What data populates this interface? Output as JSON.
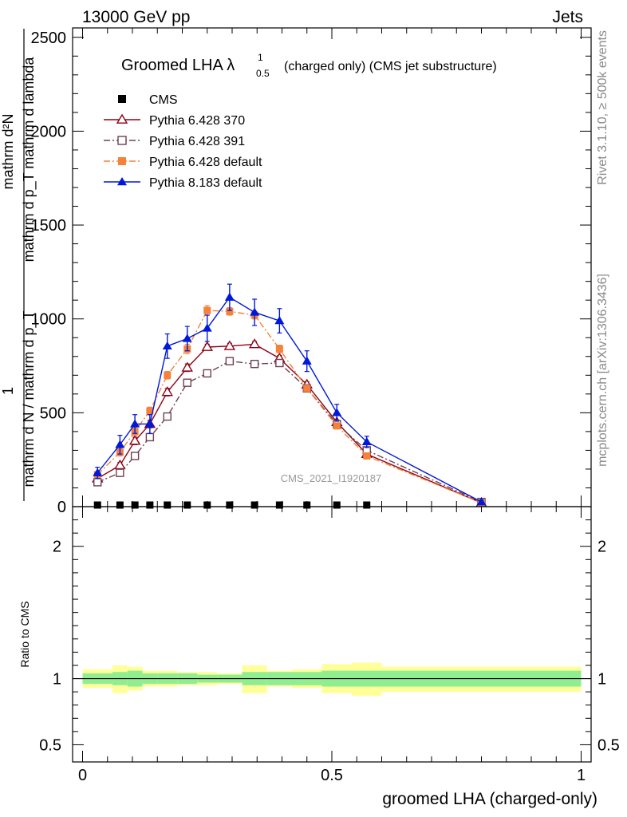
{
  "header": {
    "left": "13000 GeV pp",
    "right": "Jets"
  },
  "side_labels": {
    "rivet": "Rivet 3.1.10, ≥ 500k events",
    "mcplots": "mcplots.cern.ch [arXiv:1306.3436]"
  },
  "watermark": "CMS_2021_I1920187",
  "colors": {
    "pythia6_370": "#8b0016",
    "pythia6_391": "#704050",
    "pythia6_default": "#f5813a",
    "pythia8_default": "#0018d8",
    "band_inner": "#90ee90",
    "band_outer": "#ffff99"
  },
  "chart_data": [
    {
      "type": "line",
      "title_main": "Groomed LHA λ",
      "title_sup": "1",
      "title_sub": "0.5",
      "title_tail": "(charged only) (CMS jet substructure)",
      "ylabel_num": "1",
      "ylabel_den": "mathrm d N / mathrm d p_T",
      "ylabel_num2": "mathrm d²N",
      "ylabel_den2": "mathrm d p_T mathrm d lambda",
      "ylim": [
        0,
        2550
      ],
      "xlim": [
        -0.02,
        1.02
      ],
      "yticks": [
        0,
        500,
        1000,
        1500,
        2000,
        2500
      ],
      "ytick_labels": [
        "0",
        "500",
        "1000",
        "1500",
        "2000",
        "2500"
      ],
      "legend_position": "top-left",
      "series": [
        {
          "name": "CMS",
          "key": "cms",
          "color": "#000000",
          "marker": "square-filled",
          "line": "none",
          "x": [
            0.03,
            0.075,
            0.105,
            0.135,
            0.17,
            0.21,
            0.25,
            0.295,
            0.345,
            0.395,
            0.45,
            0.51,
            0.57
          ],
          "y": [
            0,
            0,
            0,
            0,
            0,
            0,
            0,
            0,
            0,
            0,
            0,
            0,
            0
          ]
        },
        {
          "name": "Pythia 6.428 370",
          "key": "pythia6_370",
          "color": "#8b0016",
          "marker": "triangle-open",
          "line": "solid",
          "x": [
            0.03,
            0.075,
            0.105,
            0.135,
            0.17,
            0.21,
            0.25,
            0.295,
            0.345,
            0.395,
            0.45,
            0.51,
            0.57,
            0.8
          ],
          "y": [
            150,
            220,
            350,
            440,
            610,
            740,
            850,
            855,
            865,
            790,
            650,
            450,
            280,
            20
          ],
          "err": [
            15,
            15,
            20,
            20,
            20,
            20,
            15,
            15,
            15,
            15,
            15,
            10,
            10,
            5
          ]
        },
        {
          "name": "Pythia 6.428 391",
          "key": "pythia6_391",
          "color": "#704050",
          "marker": "square-open",
          "line": "dashdot",
          "x": [
            0.03,
            0.075,
            0.105,
            0.135,
            0.17,
            0.21,
            0.25,
            0.295,
            0.345,
            0.395,
            0.45,
            0.51,
            0.57,
            0.8
          ],
          "y": [
            130,
            180,
            270,
            370,
            480,
            660,
            710,
            775,
            760,
            765,
            630,
            440,
            300,
            25
          ],
          "err": [
            10,
            10,
            10,
            10,
            10,
            10,
            10,
            10,
            10,
            10,
            10,
            10,
            10,
            5
          ]
        },
        {
          "name": "Pythia 6.428 default",
          "key": "pythia6_default",
          "color": "#f5813a",
          "marker": "square-filled",
          "line": "dashdot",
          "x": [
            0.03,
            0.075,
            0.105,
            0.135,
            0.17,
            0.21,
            0.25,
            0.295,
            0.345,
            0.395,
            0.45,
            0.51,
            0.57,
            0.8
          ],
          "y": [
            170,
            290,
            400,
            510,
            700,
            840,
            1045,
            1040,
            1020,
            840,
            630,
            430,
            270,
            20
          ],
          "err": [
            15,
            20,
            20,
            20,
            20,
            25,
            25,
            20,
            20,
            20,
            15,
            15,
            10,
            5
          ]
        },
        {
          "name": "Pythia 8.183 default",
          "key": "pythia8_default",
          "color": "#0018d8",
          "marker": "triangle-filled",
          "line": "solid",
          "x": [
            0.03,
            0.075,
            0.105,
            0.135,
            0.17,
            0.21,
            0.25,
            0.295,
            0.345,
            0.395,
            0.45,
            0.51,
            0.57,
            0.8
          ],
          "y": [
            180,
            330,
            440,
            440,
            855,
            895,
            950,
            1115,
            1035,
            990,
            775,
            500,
            345,
            25
          ],
          "err": [
            30,
            50,
            50,
            50,
            65,
            65,
            70,
            70,
            70,
            65,
            55,
            45,
            30,
            10
          ]
        }
      ]
    },
    {
      "type": "line",
      "ylabel": "Ratio to CMS",
      "xlabel": "groomed LHA (charged-only)",
      "ylim": [
        0.37,
        2.3
      ],
      "xlim": [
        -0.02,
        1.02
      ],
      "yticks": [
        0.5,
        1,
        2
      ],
      "ytick_labels": [
        "0.5",
        "1",
        "2"
      ],
      "xticks": [
        0,
        0.5,
        1
      ],
      "xtick_labels": [
        "0",
        "0.5",
        "1"
      ],
      "reference_line": 1,
      "band_edges": [
        0,
        0.06,
        0.09,
        0.12,
        0.15,
        0.19,
        0.23,
        0.27,
        0.32,
        0.37,
        0.42,
        0.48,
        0.54,
        0.6,
        1.0
      ],
      "band_inner_lo": [
        0.96,
        0.95,
        0.94,
        0.96,
        0.96,
        0.96,
        0.97,
        0.97,
        0.95,
        0.95,
        0.95,
        0.94,
        0.94,
        0.94
      ],
      "band_inner_hi": [
        1.04,
        1.05,
        1.06,
        1.04,
        1.04,
        1.04,
        1.03,
        1.03,
        1.05,
        1.05,
        1.05,
        1.06,
        1.06,
        1.06
      ],
      "band_outer_lo": [
        0.93,
        0.89,
        0.91,
        0.94,
        0.94,
        0.95,
        0.95,
        0.96,
        0.89,
        0.94,
        0.93,
        0.89,
        0.87,
        0.9
      ],
      "band_outer_hi": [
        1.07,
        1.1,
        1.09,
        1.06,
        1.06,
        1.05,
        1.05,
        1.04,
        1.1,
        1.06,
        1.07,
        1.11,
        1.12,
        1.09
      ]
    }
  ]
}
